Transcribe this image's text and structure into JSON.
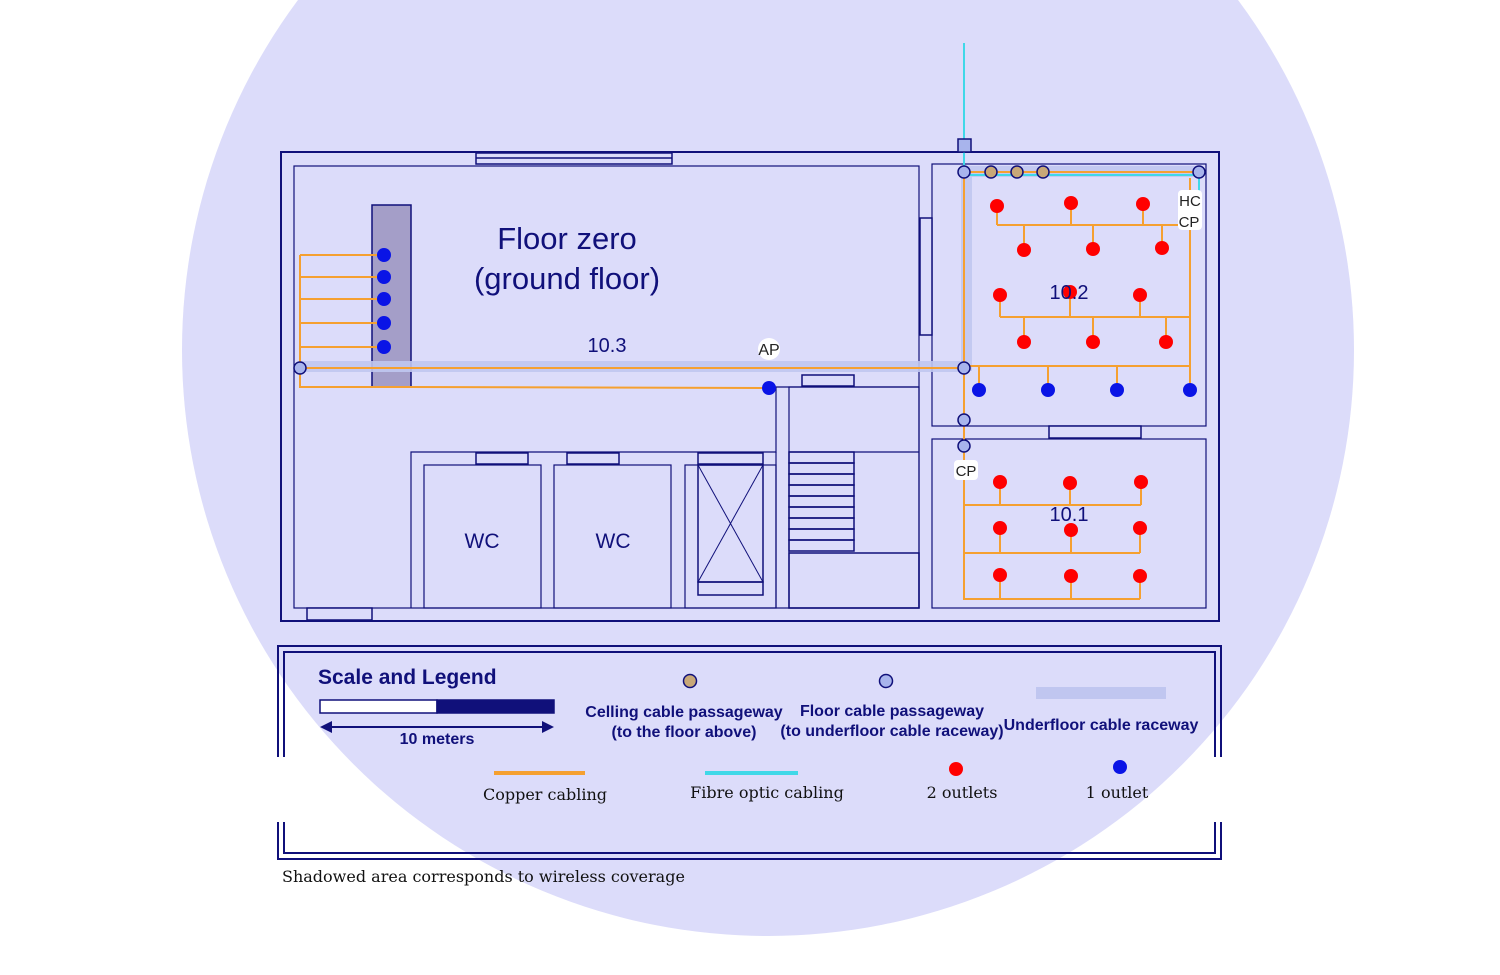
{
  "colors": {
    "coverage": "#dcdcfa",
    "wall": "#10107a",
    "copper": "#f5a030",
    "fibre": "#40d8e8",
    "raceway": "#c0c6f0",
    "shaft": "#a49ec8",
    "outlet2": "#ff0000",
    "outlet1": "#0a14e6",
    "ceiling_passage": "#c8a878",
    "floor_passage": "#a8b4ec"
  },
  "plan": {
    "title_line1": "Floor zero",
    "title_line2": "(ground floor)",
    "rooms": {
      "r103": "10.3",
      "r102": "10.2",
      "r101": "10.1",
      "wc1": "WC",
      "wc2": "WC"
    },
    "labels": {
      "ap": "AP",
      "hc": "HC",
      "cp_top": "CP",
      "cp_mid": "CP"
    }
  },
  "legend": {
    "title": "Scale and Legend",
    "scale_label": "10 meters",
    "ceiling_line1": "Celling cable passageway",
    "ceiling_line2": "(to the floor above)",
    "floor_line1": "Floor cable passageway",
    "floor_line2": "(to underfloor cable raceway)",
    "raceway": "Underfloor cable raceway",
    "copper": "Copper cabling",
    "fibre": "Fibre optic cabling",
    "two_outlets": "2 outlets",
    "one_outlet": "1 outlet",
    "footnote": "Shadowed area corresponds to wireless coverage"
  }
}
